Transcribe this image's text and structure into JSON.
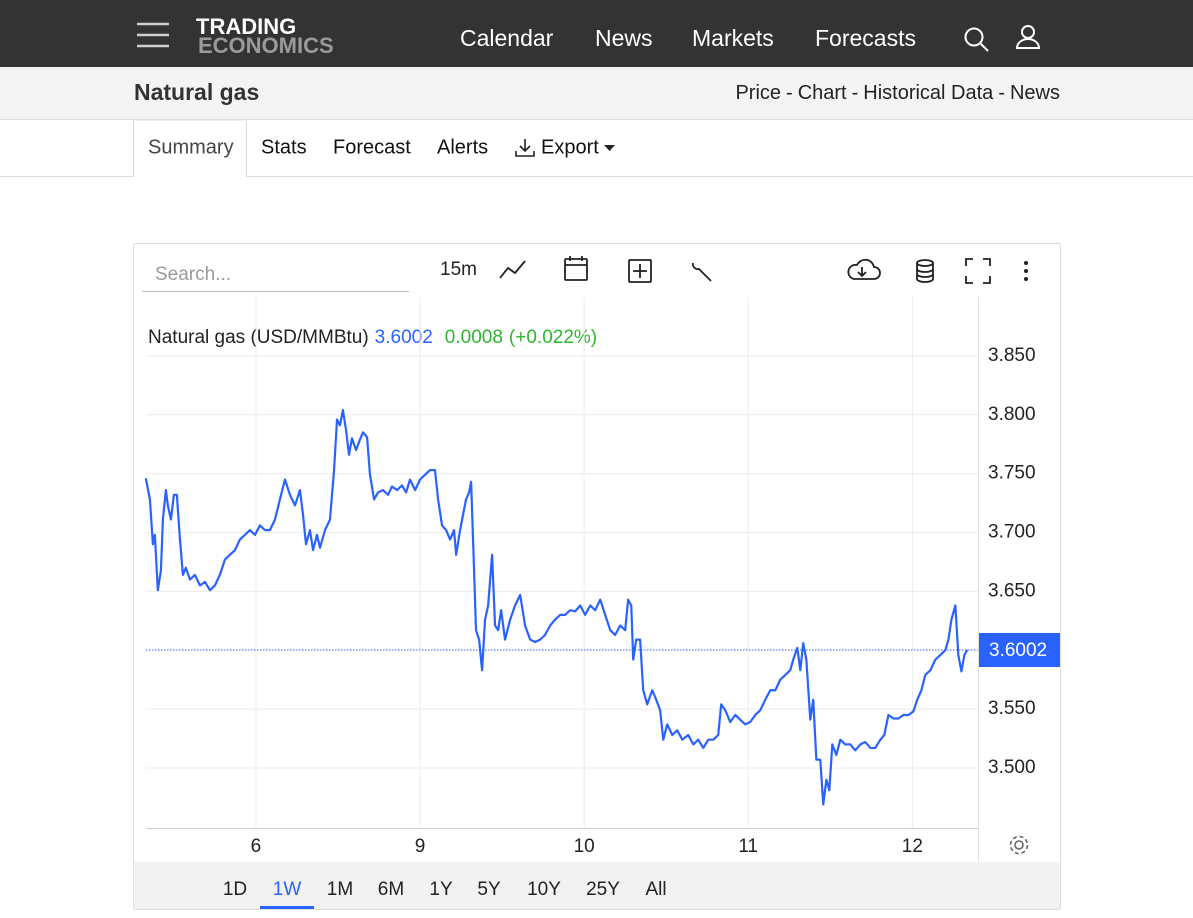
{
  "header": {
    "logo": [
      "TRADING",
      "ECONOMICS"
    ],
    "nav": [
      "Calendar",
      "News",
      "Markets",
      "Forecasts"
    ]
  },
  "subheader": {
    "title": "Natural gas",
    "links": [
      "Price",
      "Chart",
      "Historical Data",
      "News"
    ],
    "separator": "-"
  },
  "tabs": [
    "Summary",
    "Stats",
    "Forecast",
    "Alerts",
    "Export"
  ],
  "toolbar": {
    "search_placeholder": "Search...",
    "interval": "15m"
  },
  "range_buttons": [
    "1D",
    "1W",
    "1M",
    "6M",
    "1Y",
    "5Y",
    "10Y",
    "25Y",
    "All"
  ],
  "active_range": "1W",
  "chart_data": {
    "type": "line",
    "last_price": 3.6002,
    "change": 0.0008,
    "change_label": "(+0.022%)",
    "x": [
      0.329,
      0.354,
      0.372,
      0.384,
      0.402,
      0.421,
      0.433,
      0.451,
      0.463,
      0.482,
      0.5,
      0.518,
      0.537,
      0.555,
      0.573,
      0.598,
      0.628,
      0.659,
      0.689,
      0.72,
      0.75,
      0.78,
      0.811,
      0.841,
      0.872,
      0.902,
      0.933,
      0.963,
      0.994,
      1.024,
      1.055,
      1.085,
      1.116,
      1.146,
      1.177,
      1.207,
      1.238,
      1.268,
      1.287,
      1.305,
      1.329,
      1.348,
      1.372,
      1.39,
      1.421,
      1.451,
      1.476,
      1.494,
      1.512,
      1.53,
      1.549,
      1.567,
      1.585,
      1.61,
      1.634,
      1.652,
      1.677,
      1.695,
      1.72,
      1.744,
      1.774,
      1.805,
      1.829,
      1.86,
      1.89,
      1.915,
      1.939,
      1.97,
      2.0,
      2.03,
      2.061,
      2.091,
      2.11,
      2.134,
      2.159,
      2.183,
      2.207,
      2.22,
      2.244,
      2.262,
      2.28,
      2.299,
      2.311,
      2.323,
      2.341,
      2.36,
      2.378,
      2.396,
      2.415,
      2.439,
      2.457,
      2.476,
      2.494,
      2.518,
      2.549,
      2.579,
      2.61,
      2.64,
      2.671,
      2.701,
      2.732,
      2.762,
      2.793,
      2.823,
      2.854,
      2.884,
      2.915,
      2.945,
      2.976,
      3.006,
      3.037,
      3.067,
      3.098,
      3.128,
      3.159,
      3.189,
      3.22,
      3.25,
      3.268,
      3.287,
      3.299,
      3.317,
      3.341,
      3.36,
      3.384,
      3.415,
      3.439,
      3.463,
      3.482,
      3.506,
      3.537,
      3.567,
      3.598,
      3.634,
      3.665,
      3.695,
      3.726,
      3.756,
      3.787,
      3.817,
      3.835,
      3.86,
      3.89,
      3.921,
      3.951,
      3.982,
      4.012,
      4.043,
      4.073,
      4.104,
      4.134,
      4.165,
      4.195,
      4.226,
      4.256,
      4.274,
      4.299,
      4.317,
      4.335,
      4.354,
      4.378,
      4.396,
      4.415,
      4.439,
      4.457,
      4.476,
      4.494,
      4.512,
      4.537,
      4.561,
      4.591,
      4.622,
      4.652,
      4.683,
      4.713,
      4.744,
      4.774,
      4.805,
      4.829,
      4.854,
      4.884,
      4.915,
      4.945,
      4.976,
      5.006,
      5.03,
      5.055,
      5.079,
      5.11,
      5.14,
      5.171,
      5.201,
      5.22,
      5.238,
      5.262,
      5.28,
      5.299,
      5.317,
      5.335
    ],
    "series": [
      {
        "name": "Natural gas (USD/MMBtu)",
        "color": "#2962ff",
        "values": [
          3.746,
          3.728,
          3.69,
          3.698,
          3.651,
          3.668,
          3.711,
          3.736,
          3.723,
          3.711,
          3.732,
          3.732,
          3.694,
          3.664,
          3.67,
          3.66,
          3.664,
          3.655,
          3.658,
          3.651,
          3.655,
          3.664,
          3.677,
          3.681,
          3.685,
          3.694,
          3.698,
          3.702,
          3.698,
          3.706,
          3.702,
          3.702,
          3.711,
          3.728,
          3.745,
          3.732,
          3.723,
          3.736,
          3.715,
          3.69,
          3.702,
          3.685,
          3.698,
          3.687,
          3.702,
          3.711,
          3.753,
          3.796,
          3.791,
          3.804,
          3.787,
          3.766,
          3.78,
          3.77,
          3.779,
          3.785,
          3.781,
          3.749,
          3.728,
          3.734,
          3.736,
          3.732,
          3.739,
          3.736,
          3.74,
          3.734,
          3.745,
          3.736,
          3.745,
          3.749,
          3.753,
          3.753,
          3.728,
          3.706,
          3.702,
          3.694,
          3.702,
          3.681,
          3.702,
          3.715,
          3.728,
          3.734,
          3.743,
          3.694,
          3.617,
          3.609,
          3.583,
          3.626,
          3.638,
          3.681,
          3.621,
          3.617,
          3.634,
          3.609,
          3.626,
          3.638,
          3.647,
          3.621,
          3.609,
          3.607,
          3.609,
          3.613,
          3.621,
          3.626,
          3.63,
          3.63,
          3.634,
          3.633,
          3.638,
          3.63,
          3.638,
          3.634,
          3.643,
          3.63,
          3.617,
          3.613,
          3.621,
          3.617,
          3.643,
          3.638,
          3.592,
          3.609,
          3.609,
          3.566,
          3.554,
          3.566,
          3.558,
          3.549,
          3.524,
          3.537,
          3.528,
          3.532,
          3.524,
          3.528,
          3.52,
          3.524,
          3.517,
          3.524,
          3.524,
          3.528,
          3.554,
          3.549,
          3.539,
          3.545,
          3.541,
          3.537,
          3.539,
          3.545,
          3.549,
          3.558,
          3.566,
          3.566,
          3.575,
          3.579,
          3.583,
          3.592,
          3.602,
          3.583,
          3.606,
          3.592,
          3.541,
          3.558,
          3.507,
          3.507,
          3.469,
          3.49,
          3.481,
          3.52,
          3.511,
          3.524,
          3.52,
          3.52,
          3.515,
          3.52,
          3.522,
          3.517,
          3.517,
          3.524,
          3.528,
          3.545,
          3.542,
          3.542,
          3.545,
          3.545,
          3.548,
          3.558,
          3.566,
          3.579,
          3.583,
          3.592,
          3.596,
          3.6,
          3.609,
          3.626,
          3.638,
          3.596,
          3.582,
          3.596,
          3.6002
        ]
      }
    ],
    "xlim": [
      0.33,
      5.4
    ],
    "xticks": [
      {
        "value": 1,
        "label": "6"
      },
      {
        "value": 2,
        "label": "9"
      },
      {
        "value": 3,
        "label": "10"
      },
      {
        "value": 4,
        "label": "11"
      },
      {
        "value": 5,
        "label": "12"
      }
    ],
    "ylim": [
      3.449,
      3.9
    ],
    "yticks": [
      {
        "value": 3.5,
        "label": "3.500"
      },
      {
        "value": 3.55,
        "label": "3.550"
      },
      {
        "value": 3.65,
        "label": "3.650"
      },
      {
        "value": 3.7,
        "label": "3.700"
      },
      {
        "value": 3.75,
        "label": "3.750"
      },
      {
        "value": 3.8,
        "label": "3.800"
      },
      {
        "value": 3.85,
        "label": "3.850"
      }
    ],
    "grid": true
  }
}
